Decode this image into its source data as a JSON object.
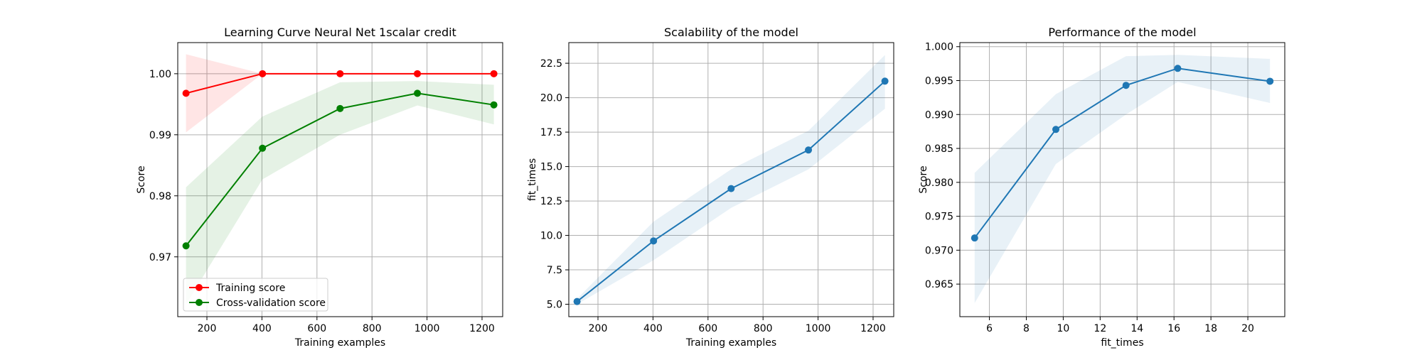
{
  "chart_data": [
    {
      "type": "line",
      "title": "Learning Curve Neural Net 1scalar credit",
      "xlabel": "Training examples",
      "ylabel": "Score",
      "xlim": [
        94,
        1275
      ],
      "ylim": [
        0.9602,
        1.0051
      ],
      "xticks": [
        200,
        400,
        600,
        800,
        1000,
        1200
      ],
      "yticks": [
        0.97,
        0.98,
        0.99,
        1.0
      ],
      "ytick_labels": [
        "0.97",
        "0.98",
        "0.99",
        "1.00"
      ],
      "grid": true,
      "legend_position": "lower-left",
      "x": [
        124,
        402,
        684,
        965,
        1243
      ],
      "series": [
        {
          "name": "Training score",
          "color": "#ff0000",
          "fill_color": "#ff0000",
          "values": [
            0.9968,
            1.0,
            1.0,
            1.0,
            1.0
          ],
          "lower": [
            0.9904,
            1.0,
            1.0,
            1.0,
            1.0
          ],
          "upper": [
            1.0032,
            1.0,
            1.0,
            1.0,
            1.0
          ]
        },
        {
          "name": "Cross-validation score",
          "color": "#008000",
          "fill_color": "#008000",
          "values": [
            0.9718,
            0.9878,
            0.9943,
            0.9968,
            0.9949
          ],
          "lower": [
            0.9622,
            0.9827,
            0.99,
            0.9948,
            0.9917
          ],
          "upper": [
            0.9814,
            0.993,
            0.9986,
            0.9988,
            0.9982
          ]
        }
      ]
    },
    {
      "type": "line",
      "title": "Scalability of the model",
      "xlabel": "Training examples",
      "ylabel": "fit_times",
      "xlim": [
        94,
        1275
      ],
      "ylim": [
        4.1,
        24.0
      ],
      "xticks": [
        200,
        400,
        600,
        800,
        1000,
        1200
      ],
      "yticks": [
        5.0,
        7.5,
        10.0,
        12.5,
        15.0,
        17.5,
        20.0,
        22.5
      ],
      "ytick_labels": [
        "5.0",
        "7.5",
        "10.0",
        "12.5",
        "15.0",
        "17.5",
        "20.0",
        "22.5"
      ],
      "grid": true,
      "x": [
        124,
        402,
        684,
        965,
        1243
      ],
      "series": [
        {
          "color": "#1f77b4",
          "fill_color": "#1f77b4",
          "values": [
            5.2,
            9.6,
            13.4,
            16.2,
            21.2
          ],
          "lower": [
            5.0,
            8.2,
            12.0,
            14.8,
            19.2
          ],
          "upper": [
            5.4,
            11.0,
            14.8,
            17.6,
            23.1
          ]
        }
      ]
    },
    {
      "type": "line",
      "title": "Performance of the model",
      "xlabel": "fit_times",
      "ylabel": "Score",
      "xlim": [
        4.4,
        22.0
      ],
      "ylim": [
        0.9602,
        1.0006
      ],
      "xticks": [
        6,
        8,
        10,
        12,
        14,
        16,
        18,
        20
      ],
      "yticks": [
        0.965,
        0.97,
        0.975,
        0.98,
        0.985,
        0.99,
        0.995,
        1.0
      ],
      "ytick_labels": [
        "0.965",
        "0.970",
        "0.975",
        "0.980",
        "0.985",
        "0.990",
        "0.995",
        "1.000"
      ],
      "grid": true,
      "x": [
        5.2,
        9.6,
        13.4,
        16.2,
        21.2
      ],
      "series": [
        {
          "color": "#1f77b4",
          "fill_color": "#1f77b4",
          "values": [
            0.9718,
            0.9878,
            0.9943,
            0.9968,
            0.9949
          ],
          "lower": [
            0.9622,
            0.9827,
            0.99,
            0.9948,
            0.9917
          ],
          "upper": [
            0.9814,
            0.993,
            0.9986,
            0.9988,
            0.9982
          ]
        }
      ]
    }
  ]
}
